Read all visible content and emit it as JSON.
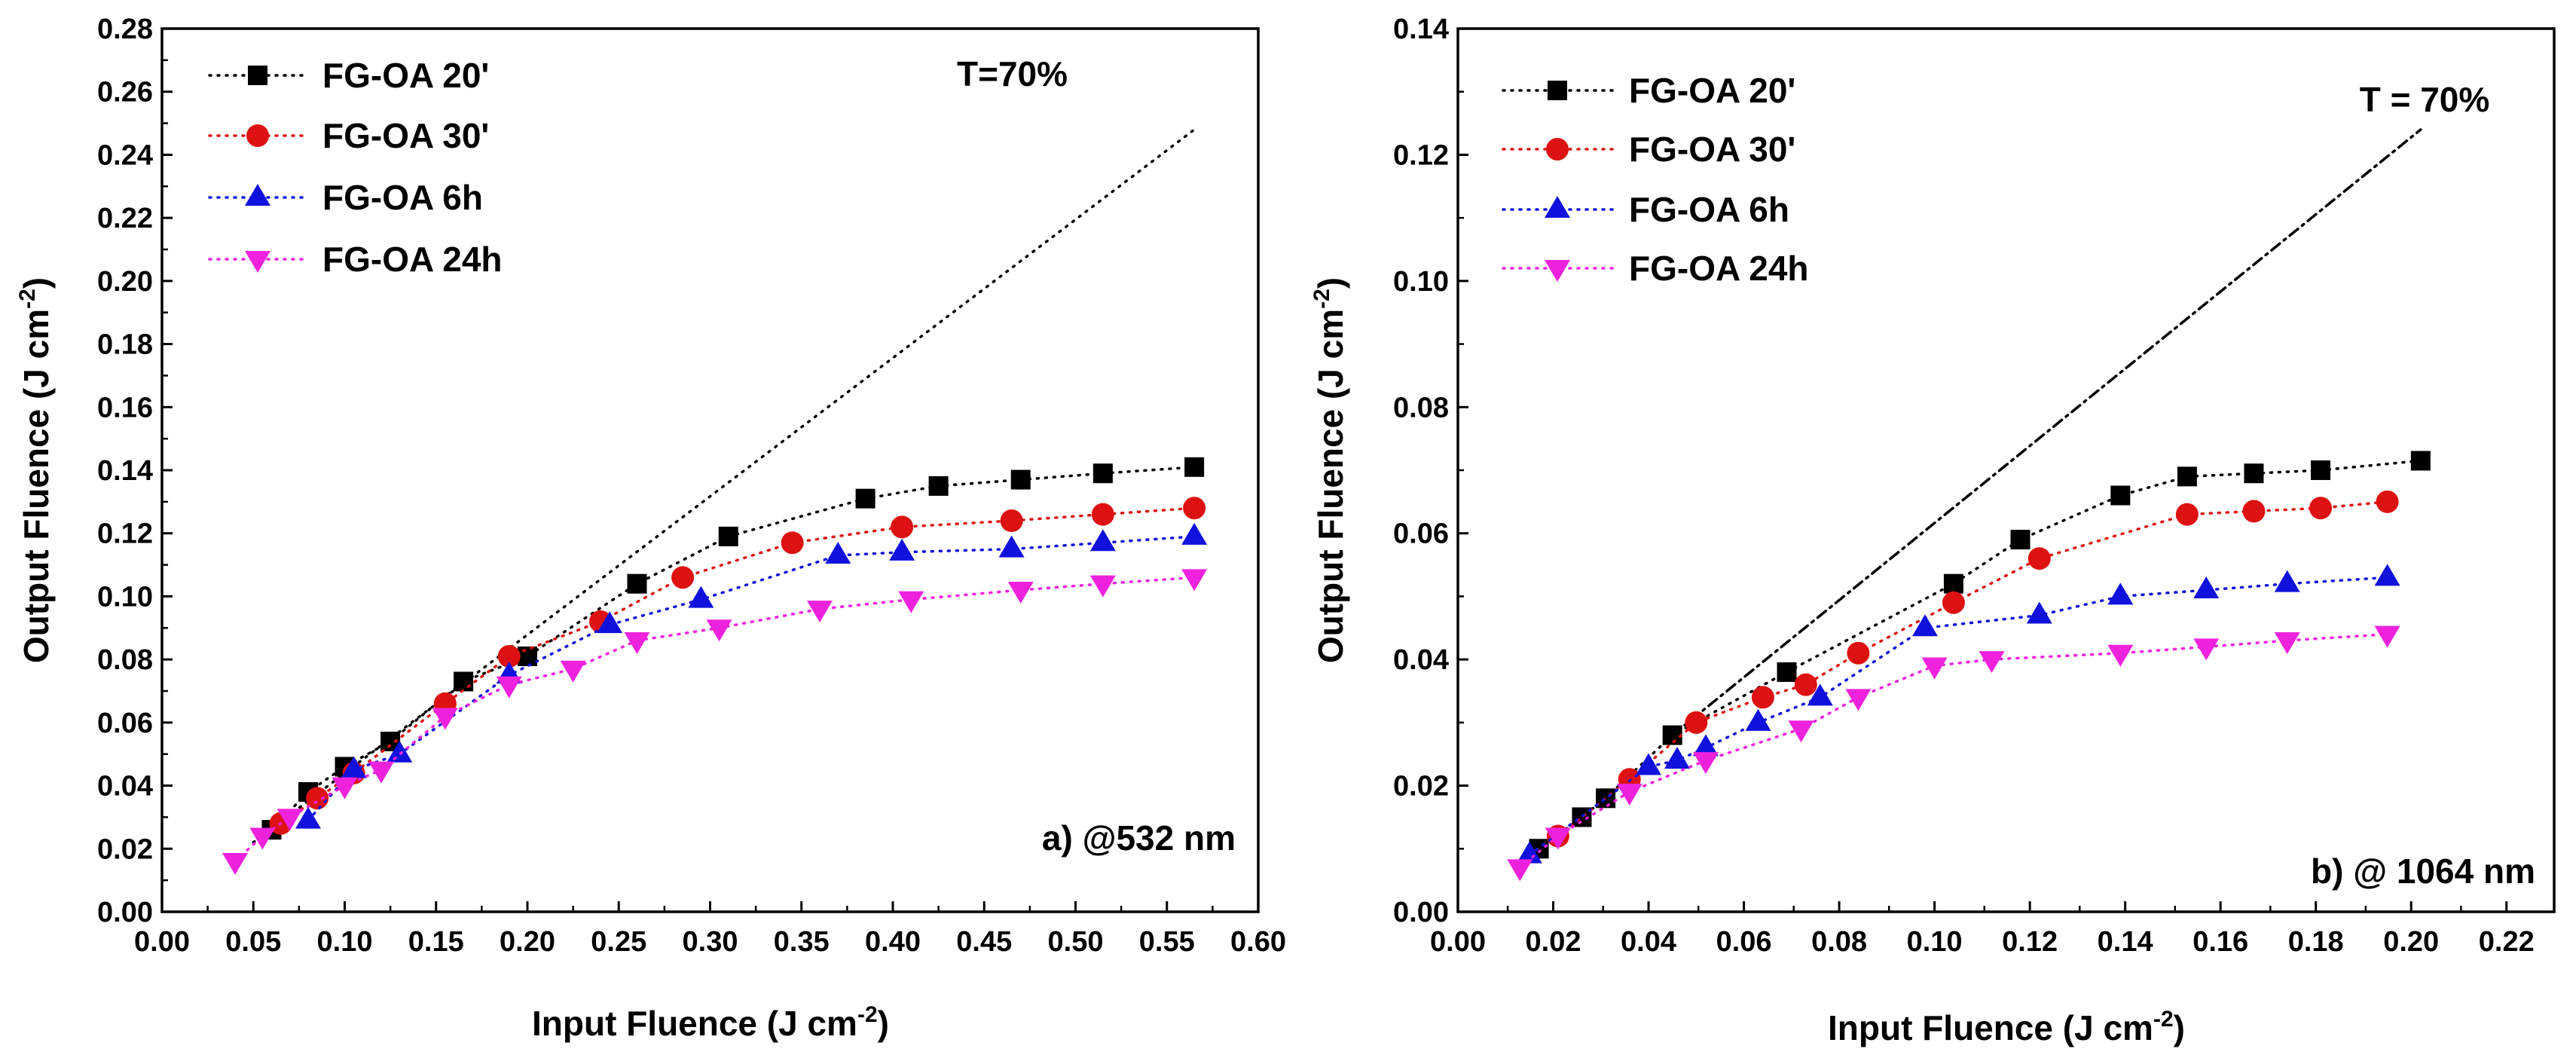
{
  "chart_data": [
    {
      "id": "a",
      "type": "line",
      "xlabel": "Input Fluence (J cm-2)",
      "xlabel_main": "Input Fluence (J cm",
      "xlabel_sup": "-2",
      "xlabel_close": ")",
      "ylabel": "Output Fluence (J cm-2)",
      "ylabel_main": "Output Fluence (J cm",
      "ylabel_sup": "-2",
      "ylabel_close": ")",
      "xlim": [
        0.0,
        0.6
      ],
      "ylim": [
        0.0,
        0.28
      ],
      "xticks": [
        "0.00",
        "0.05",
        "0.10",
        "0.15",
        "0.20",
        "0.25",
        "0.30",
        "0.35",
        "0.40",
        "0.45",
        "0.50",
        "0.55",
        "0.60"
      ],
      "yticks": [
        "0.00",
        "0.02",
        "0.04",
        "0.06",
        "0.08",
        "0.10",
        "0.12",
        "0.14",
        "0.16",
        "0.18",
        "0.20",
        "0.22",
        "0.24",
        "0.26",
        "0.28"
      ],
      "annotation_T": "T=70%",
      "annotation_wavelength": "a) @532 nm",
      "legend_position": "top-left",
      "linear_reference": {
        "x": [
          0.05,
          0.565
        ],
        "y": [
          0.022,
          0.248
        ]
      },
      "series": [
        {
          "name": "FG-OA 20'",
          "color": "#000000",
          "marker": "square",
          "x": [
            0.06,
            0.08,
            0.1,
            0.125,
            0.165,
            0.2,
            0.26,
            0.31,
            0.385,
            0.425,
            0.47,
            0.515,
            0.565
          ],
          "y": [
            0.026,
            0.038,
            0.046,
            0.054,
            0.073,
            0.081,
            0.104,
            0.119,
            0.131,
            0.135,
            0.137,
            0.139,
            0.141
          ]
        },
        {
          "name": "FG-OA 30'",
          "color": "#dd1111",
          "marker": "circle",
          "x": [
            0.065,
            0.085,
            0.105,
            0.155,
            0.19,
            0.24,
            0.285,
            0.345,
            0.405,
            0.465,
            0.515,
            0.565
          ],
          "y": [
            0.028,
            0.036,
            0.044,
            0.066,
            0.081,
            0.092,
            0.106,
            0.117,
            0.122,
            0.124,
            0.126,
            0.128
          ]
        },
        {
          "name": "FG-OA 6h",
          "color": "#1111dd",
          "marker": "triangle-up",
          "x": [
            0.08,
            0.105,
            0.13,
            0.19,
            0.245,
            0.295,
            0.37,
            0.405,
            0.465,
            0.515,
            0.565
          ],
          "y": [
            0.029,
            0.045,
            0.05,
            0.075,
            0.091,
            0.099,
            0.113,
            0.114,
            0.115,
            0.117,
            0.119
          ]
        },
        {
          "name": "FG-OA 24h",
          "color": "#ee22dd",
          "marker": "triangle-down",
          "x": [
            0.04,
            0.055,
            0.07,
            0.1,
            0.12,
            0.155,
            0.19,
            0.225,
            0.26,
            0.305,
            0.36,
            0.41,
            0.47,
            0.515,
            0.565
          ],
          "y": [
            0.016,
            0.024,
            0.03,
            0.04,
            0.045,
            0.062,
            0.072,
            0.077,
            0.086,
            0.09,
            0.096,
            0.099,
            0.102,
            0.104,
            0.106
          ]
        }
      ]
    },
    {
      "id": "b",
      "type": "line",
      "xlabel": "Input Fluence (J cm-2)",
      "xlabel_main": "Input Fluence (J cm",
      "xlabel_sup": "-2",
      "xlabel_close": ")",
      "ylabel": "Output Fluence (J cm-2)",
      "ylabel_main": "Output Fluence (J cm",
      "ylabel_sup": "-2",
      "ylabel_close": ")",
      "xlim": [
        0.0,
        0.23
      ],
      "ylim": [
        0.0,
        0.14
      ],
      "xticks": [
        "0.00",
        "0.02",
        "0.04",
        "0.06",
        "0.08",
        "0.10",
        "0.12",
        "0.14",
        "0.16",
        "0.18",
        "0.20",
        "0.22"
      ],
      "yticks": [
        "0.00",
        "0.02",
        "0.04",
        "0.06",
        "0.08",
        "0.10",
        "0.12",
        "0.14"
      ],
      "annotation_T": "T = 70%",
      "annotation_wavelength": "b) @ 1064 nm",
      "legend_position": "top-left",
      "linear_reference": {
        "x": [
          0.045,
          0.202
        ],
        "y": [
          0.028,
          0.124
        ]
      },
      "series": [
        {
          "name": "FG-OA 20'",
          "color": "#000000",
          "marker": "square",
          "x": [
            0.017,
            0.026,
            0.031,
            0.045,
            0.069,
            0.104,
            0.118,
            0.139,
            0.153,
            0.167,
            0.181,
            0.202
          ],
          "y": [
            0.01,
            0.015,
            0.018,
            0.028,
            0.038,
            0.052,
            0.059,
            0.066,
            0.069,
            0.0695,
            0.07,
            0.0715
          ]
        },
        {
          "name": "FG-OA 30'",
          "color": "#dd1111",
          "marker": "circle",
          "x": [
            0.021,
            0.036,
            0.05,
            0.064,
            0.073,
            0.084,
            0.104,
            0.122,
            0.153,
            0.167,
            0.181,
            0.195
          ],
          "y": [
            0.012,
            0.021,
            0.03,
            0.034,
            0.036,
            0.041,
            0.049,
            0.056,
            0.063,
            0.0635,
            0.064,
            0.065
          ]
        },
        {
          "name": "FG-OA 6h",
          "color": "#1111dd",
          "marker": "triangle-up",
          "x": [
            0.015,
            0.04,
            0.046,
            0.052,
            0.063,
            0.076,
            0.098,
            0.122,
            0.139,
            0.157,
            0.174,
            0.195
          ],
          "y": [
            0.009,
            0.023,
            0.024,
            0.026,
            0.03,
            0.034,
            0.045,
            0.047,
            0.05,
            0.051,
            0.052,
            0.053
          ]
        },
        {
          "name": "FG-OA 24h",
          "color": "#ee22dd",
          "marker": "triangle-down",
          "x": [
            0.013,
            0.021,
            0.036,
            0.052,
            0.072,
            0.084,
            0.1,
            0.112,
            0.139,
            0.157,
            0.174,
            0.195
          ],
          "y": [
            0.007,
            0.012,
            0.019,
            0.024,
            0.029,
            0.034,
            0.039,
            0.04,
            0.041,
            0.042,
            0.043,
            0.044
          ]
        }
      ]
    }
  ]
}
